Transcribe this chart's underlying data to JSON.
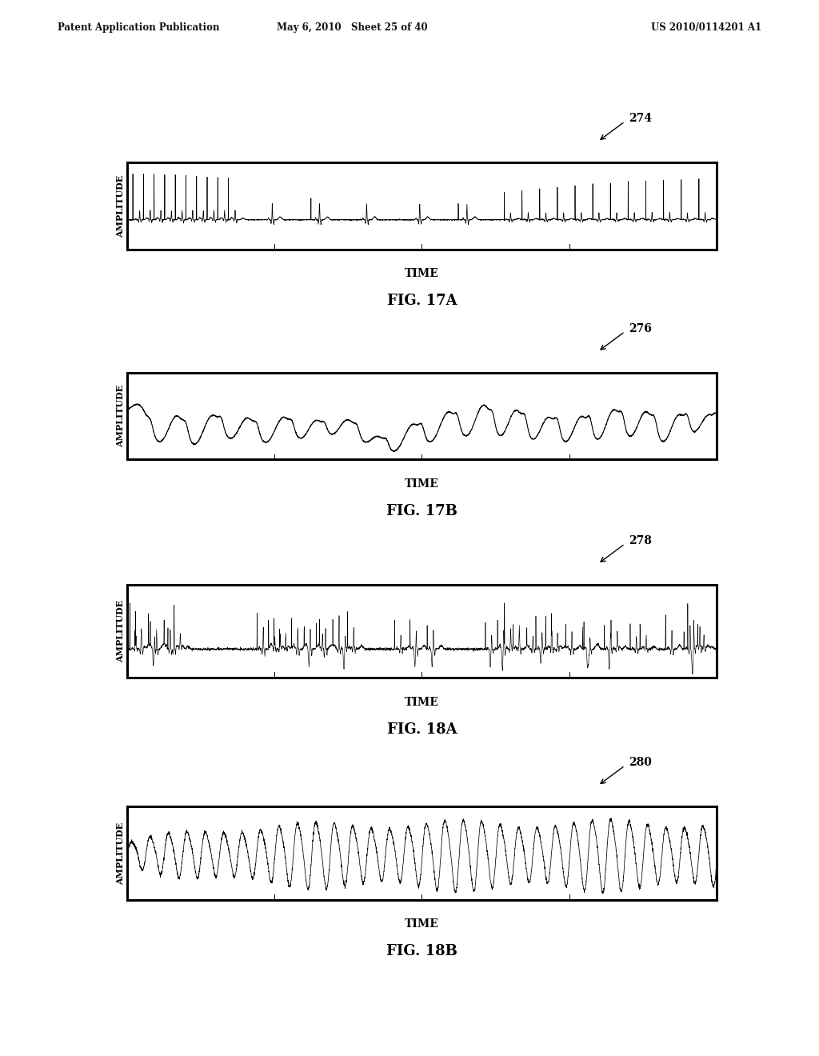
{
  "header_left": "Patent Application Publication",
  "header_mid": "May 6, 2010   Sheet 25 of 40",
  "header_right": "US 2010/0114201 A1",
  "fig17a_label": "274",
  "fig17b_label": "276",
  "fig18a_label": "278",
  "fig18b_label": "280",
  "fig17a_caption": "FIG. 17A",
  "fig17b_caption": "FIG. 17B",
  "fig18a_caption": "FIG. 18A",
  "fig18b_caption": "FIG. 18B",
  "time_label": "TIME",
  "amplitude_label": "AMPLITUDE",
  "bg_color": "#ffffff"
}
